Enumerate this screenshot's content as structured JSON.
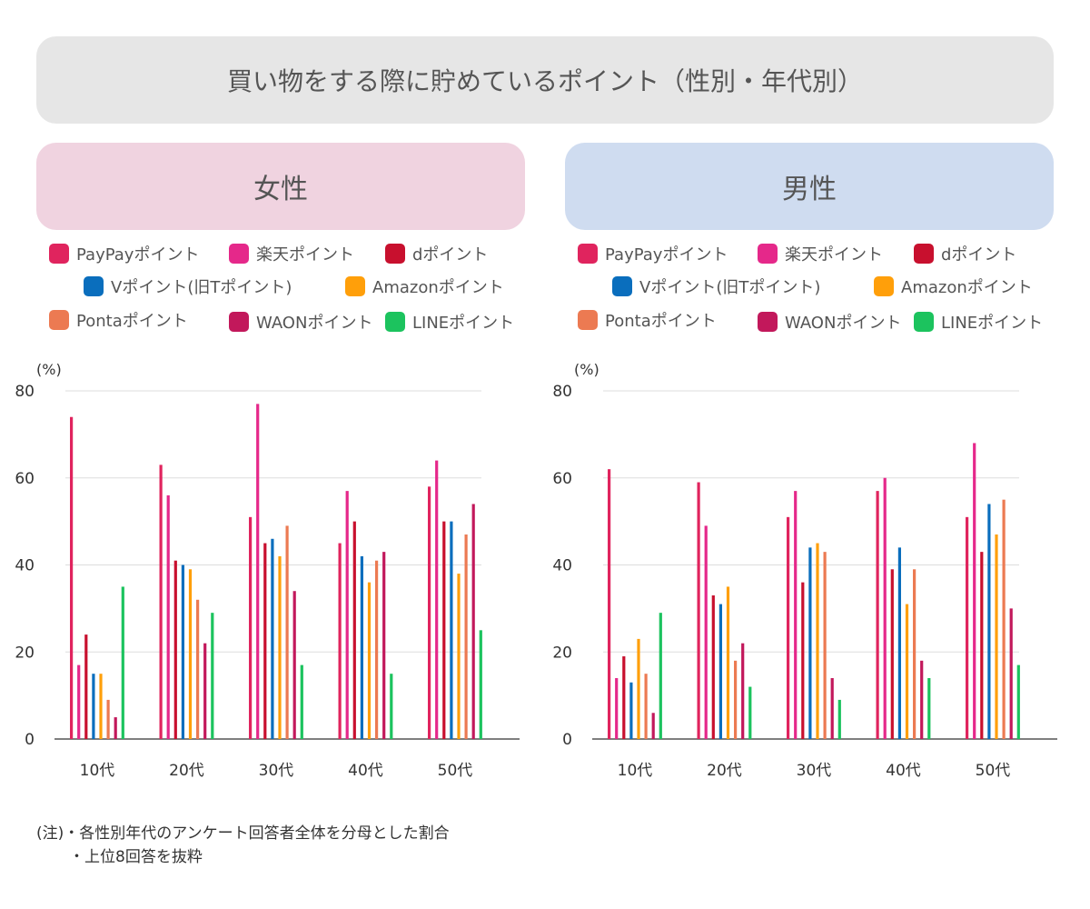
{
  "title": "買い物をする際に貯めているポイント（性別・年代別）",
  "legend": [
    {
      "label": "PayPayポイント",
      "color": "#e0245e"
    },
    {
      "label": "楽天ポイント",
      "color": "#e5288a"
    },
    {
      "label": "dポイント",
      "color": "#c8102e"
    },
    {
      "label": "Vポイント(旧Tポイント)",
      "color": "#0a6ebd"
    },
    {
      "label": "Amazonポイント",
      "color": "#ff9f0a"
    },
    {
      "label": "Pontaポイント",
      "color": "#ec7a52"
    },
    {
      "label": "WAONポイント",
      "color": "#c2185b"
    },
    {
      "label": "LINEポイント",
      "color": "#1cc35e"
    }
  ],
  "axis": {
    "unit": "(%)",
    "ticks": [
      "0",
      "20",
      "40",
      "60",
      "80"
    ]
  },
  "chart_data": [
    {
      "type": "bar",
      "title": "女性",
      "categories": [
        "10代",
        "20代",
        "30代",
        "40代",
        "50代"
      ],
      "ylabel": "(%)",
      "ylim": [
        0,
        80
      ],
      "grid": true,
      "series": [
        {
          "name": "PayPayポイント",
          "values": [
            74,
            63,
            51,
            45,
            58
          ]
        },
        {
          "name": "楽天ポイント",
          "values": [
            17,
            56,
            77,
            57,
            64
          ]
        },
        {
          "name": "dポイント",
          "values": [
            24,
            41,
            45,
            50,
            50
          ]
        },
        {
          "name": "Vポイント(旧Tポイント)",
          "values": [
            15,
            40,
            46,
            42,
            50
          ]
        },
        {
          "name": "Amazonポイント",
          "values": [
            15,
            39,
            42,
            36,
            38
          ]
        },
        {
          "name": "Pontaポイント",
          "values": [
            9,
            32,
            49,
            41,
            47
          ]
        },
        {
          "name": "WAONポイント",
          "values": [
            5,
            22,
            34,
            43,
            54
          ]
        },
        {
          "name": "LINEポイント",
          "values": [
            35,
            29,
            17,
            15,
            25
          ]
        }
      ]
    },
    {
      "type": "bar",
      "title": "男性",
      "categories": [
        "10代",
        "20代",
        "30代",
        "40代",
        "50代"
      ],
      "ylabel": "(%)",
      "ylim": [
        0,
        80
      ],
      "grid": true,
      "series": [
        {
          "name": "PayPayポイント",
          "values": [
            62,
            59,
            51,
            57,
            51
          ]
        },
        {
          "name": "楽天ポイント",
          "values": [
            14,
            49,
            57,
            60,
            68
          ]
        },
        {
          "name": "dポイント",
          "values": [
            19,
            33,
            36,
            39,
            43
          ]
        },
        {
          "name": "Vポイント(旧Tポイント)",
          "values": [
            13,
            31,
            44,
            44,
            54
          ]
        },
        {
          "name": "Amazonポイント",
          "values": [
            23,
            35,
            45,
            31,
            47
          ]
        },
        {
          "name": "Pontaポイント",
          "values": [
            15,
            18,
            43,
            39,
            55
          ]
        },
        {
          "name": "WAONポイント",
          "values": [
            6,
            22,
            14,
            18,
            30
          ]
        },
        {
          "name": "LINEポイント",
          "values": [
            29,
            12,
            9,
            14,
            17
          ]
        }
      ]
    }
  ],
  "panels": [
    {
      "title": "女性",
      "color": "#f0d3e0"
    },
    {
      "title": "男性",
      "color": "#cfdcf0"
    }
  ],
  "notes": [
    "(注)・各性別年代のアンケート回答者全体を分母とした割合",
    "・上位8回答を抜粋"
  ]
}
